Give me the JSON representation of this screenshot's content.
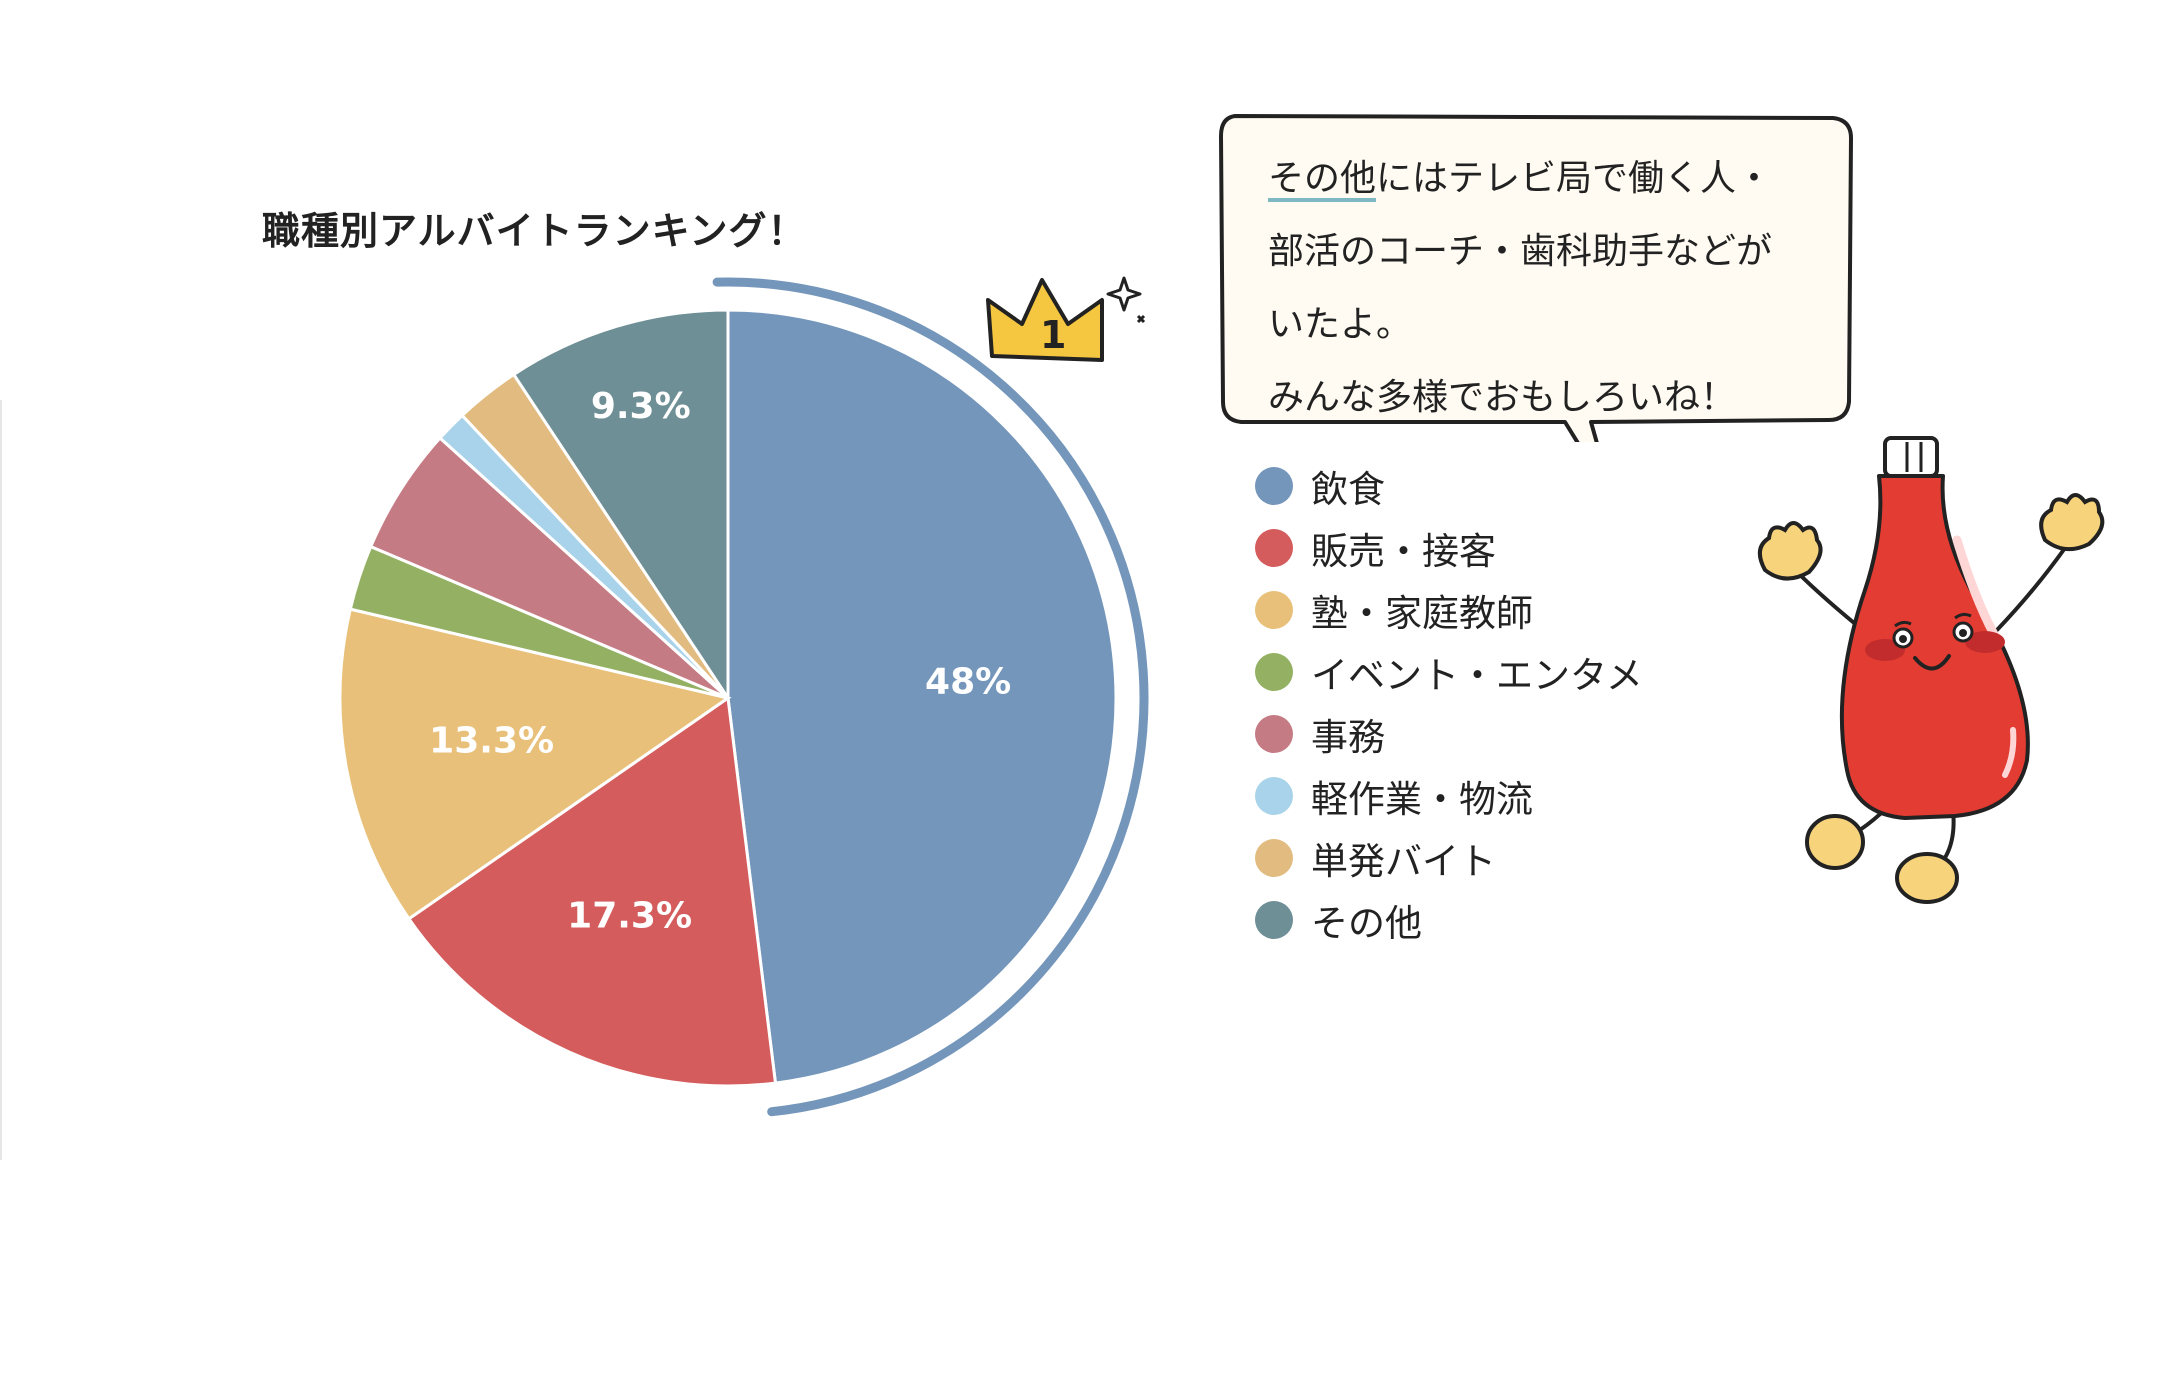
{
  "chart_data": {
    "type": "pie",
    "title": "職種別アルバイトランキング！",
    "categories": [
      "飲食",
      "販売・接客",
      "塾・家庭教師",
      "イベント・エンタメ",
      "事務",
      "軽作業・物流",
      "単発バイト",
      "その他"
    ],
    "values": [
      48,
      17.3,
      13.3,
      2.7,
      5.3,
      1.3,
      2.7,
      9.3
    ],
    "labels": [
      "48%",
      "17.3%",
      "13.3%",
      "",
      "",
      "",
      "",
      "9.3%"
    ],
    "colors": [
      "#7496bb",
      "#d45c5c",
      "#e8c07a",
      "#94b062",
      "#c57b84",
      "#a9d3ea",
      "#e1bb80",
      "#6e8f95"
    ],
    "legend_position": "right",
    "highlight": {
      "rank": "1",
      "category": "飲食"
    }
  },
  "speech_bubble": {
    "highlight": "その他",
    "line1_rest": "にはテレビ局で働く人・",
    "line2": "部活のコーチ・歯科助手などが",
    "line3": "いたよ。",
    "line4": "みんな多様でおもしろいね！"
  },
  "mascot": {
    "icon": "ketchup-bottle-icon",
    "color": "#e33d33"
  },
  "crown": {
    "icon": "crown-icon",
    "color": "#f5c640",
    "number": "1"
  }
}
